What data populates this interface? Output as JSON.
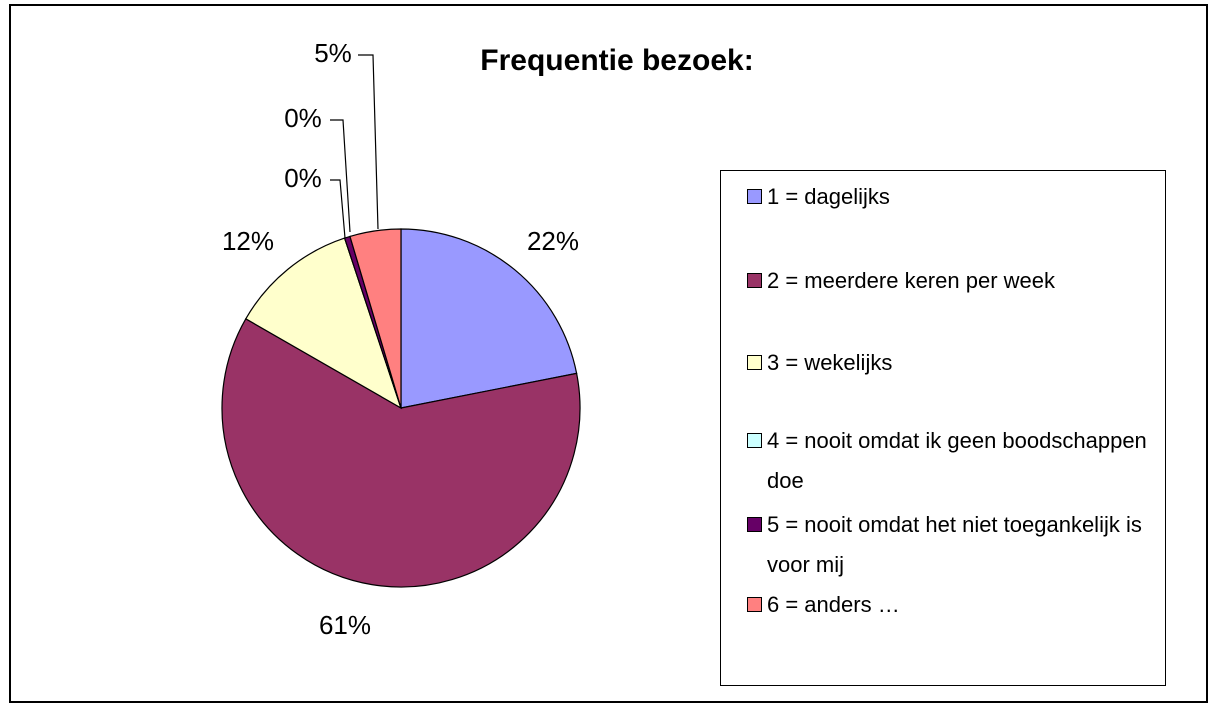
{
  "chart_data": {
    "type": "pie",
    "title": "Frequentie bezoek:",
    "categories": [
      "1 = dagelijks",
      "2 = meerdere keren per week",
      "3 = wekelijks",
      "4 = nooit omdat ik geen boodschappen doe",
      "5 = nooit omdat het niet toegankelijk is voor mij",
      "6 = anders …"
    ],
    "values": [
      21.9,
      61.4,
      11.6,
      0,
      0.5,
      4.6
    ],
    "value_labels": [
      "22%",
      "61%",
      "12%",
      "0%",
      "0%",
      "5%"
    ],
    "colors": [
      "#9999ff",
      "#993366",
      "#ffffcc",
      "#ccffff",
      "#660066",
      "#ff8080"
    ]
  }
}
